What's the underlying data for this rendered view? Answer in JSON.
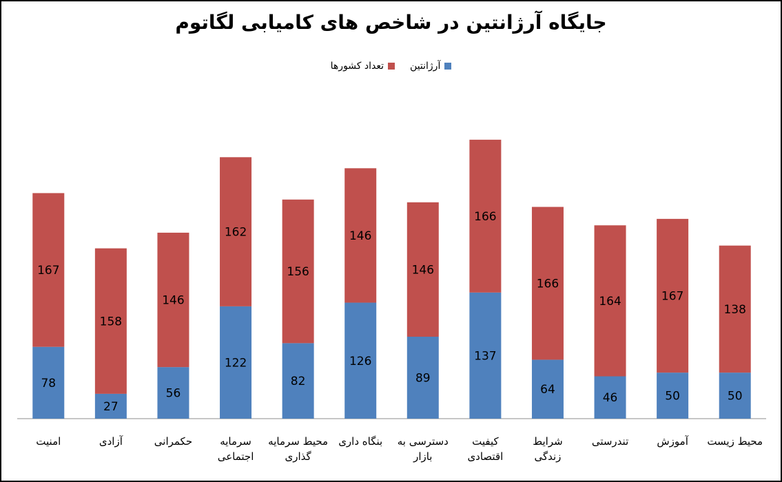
{
  "chart_data": {
    "type": "bar",
    "stacked": true,
    "title": "جایگاه آرژانتین در شاخص های کامیابی لگاتوم",
    "categories": [
      [
        "امنیت"
      ],
      [
        "آزادی"
      ],
      [
        "حکمرانی"
      ],
      [
        "سرمایه",
        "اجتماعی"
      ],
      [
        "محیط سرمایه",
        "گذاری"
      ],
      [
        "بنگاه داری"
      ],
      [
        "دسترسی به",
        "بازار"
      ],
      [
        "کیفیت",
        "اقتصادی"
      ],
      [
        "شرایط",
        "زندگی"
      ],
      [
        "تندرستی"
      ],
      [
        "آموزش"
      ],
      [
        "محیط زیست"
      ]
    ],
    "series": [
      {
        "name": "آرژانتین",
        "color": "#4f81bd",
        "values": [
          78,
          27,
          56,
          122,
          82,
          126,
          89,
          137,
          64,
          46,
          50,
          50
        ]
      },
      {
        "name": "تعداد کشورها",
        "color": "#c0504d",
        "values": [
          167,
          158,
          146,
          162,
          156,
          146,
          146,
          166,
          166,
          164,
          167,
          138
        ]
      }
    ],
    "legend_position": "top",
    "grid": false
  }
}
